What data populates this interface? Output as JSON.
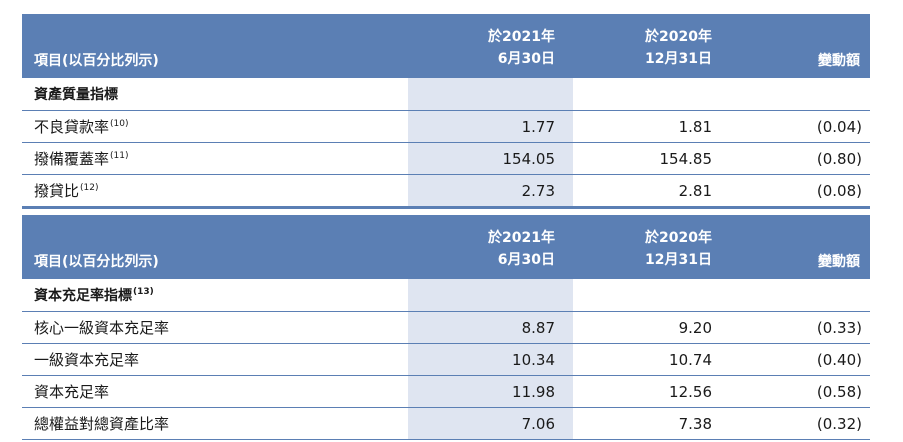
{
  "tables": [
    {
      "header": {
        "item_label": "項目(以百分比列示)",
        "col1_line1": "於2021年",
        "col1_line2": "6月30日",
        "col2_line1": "於2020年",
        "col2_line2": "12月31日",
        "change_label": "變動額"
      },
      "section_title": "資產質量指標",
      "section_note": "",
      "rows": [
        {
          "label": "不良貸款率",
          "note": "(10)",
          "v2021": "1.77",
          "v2020": "1.81",
          "change": "(0.04)"
        },
        {
          "label": "撥備覆蓋率",
          "note": "(11)",
          "v2021": "154.05",
          "v2020": "154.85",
          "change": "(0.80)"
        },
        {
          "label": "撥貸比",
          "note": "(12)",
          "v2021": "2.73",
          "v2020": "2.81",
          "change": "(0.08)"
        }
      ]
    },
    {
      "header": {
        "item_label": "項目(以百分比列示)",
        "col1_line1": "於2021年",
        "col1_line2": "6月30日",
        "col2_line1": "於2020年",
        "col2_line2": "12月31日",
        "change_label": "變動額"
      },
      "section_title": "資本充足率指標",
      "section_note": "(13)",
      "rows": [
        {
          "label": "核心一級資本充足率",
          "note": "",
          "v2021": "8.87",
          "v2020": "9.20",
          "change": "(0.33)"
        },
        {
          "label": "一級資本充足率",
          "note": "",
          "v2021": "10.34",
          "v2020": "10.74",
          "change": "(0.40)"
        },
        {
          "label": "資本充足率",
          "note": "",
          "v2021": "11.98",
          "v2020": "12.56",
          "change": "(0.58)"
        },
        {
          "label": "總權益對總資產比率",
          "note": "",
          "v2021": "7.06",
          "v2020": "7.38",
          "change": "(0.32)"
        }
      ]
    }
  ]
}
